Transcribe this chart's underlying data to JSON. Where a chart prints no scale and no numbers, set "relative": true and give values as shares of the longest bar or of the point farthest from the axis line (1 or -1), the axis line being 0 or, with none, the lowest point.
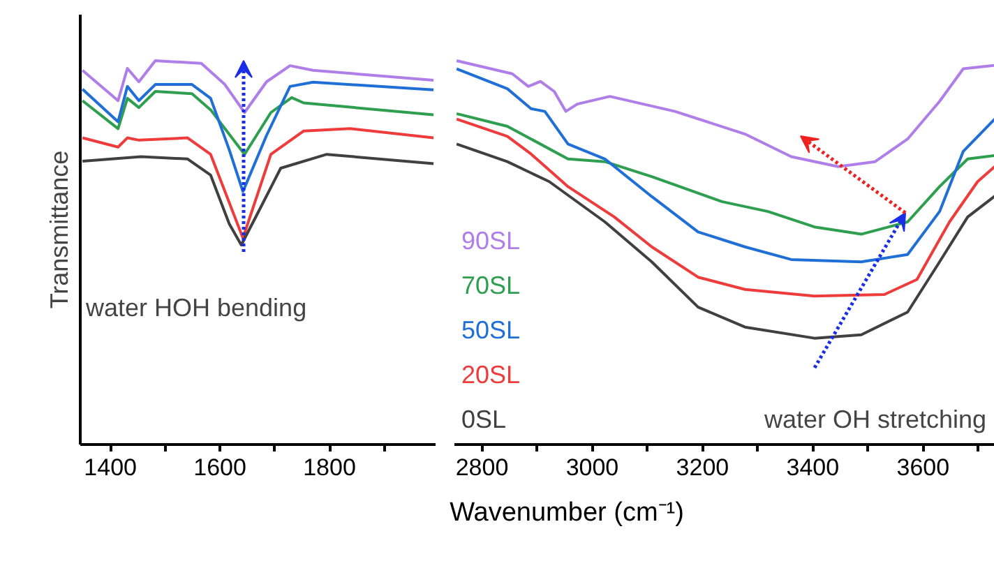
{
  "chart_data": [
    {
      "type": "line",
      "ylabel": "Transmittance",
      "relative": true,
      "xlim": [
        1345,
        1995
      ],
      "xticks": [
        1400,
        {
          "value": 1500,
          "label": null
        },
        1600,
        {
          "value": 1700,
          "label": null
        },
        1800,
        {
          "value": 1900,
          "label": null
        }
      ],
      "grid": false,
      "annotations": [
        "water HOH bending"
      ],
      "series": [
        {
          "color": "#b07ee8",
          "x": [
            1349,
            1414,
            1431,
            1452,
            1482,
            1566,
            1609,
            1645,
            1685,
            1728,
            1770,
            1990
          ],
          "values": [
            0.975,
            0.896,
            0.98,
            0.945,
            1.0,
            0.993,
            0.938,
            0.865,
            0.945,
            0.987,
            0.975,
            0.949
          ]
        },
        {
          "color": "#2e9e4f",
          "x": [
            1349,
            1414,
            1431,
            1452,
            1482,
            1549,
            1583,
            1645,
            1693,
            1731,
            1753,
            1990
          ],
          "values": [
            0.896,
            0.823,
            0.902,
            0.878,
            0.92,
            0.914,
            0.872,
            0.756,
            0.865,
            0.904,
            0.89,
            0.859
          ]
        },
        {
          "color": "#1f6fd6",
          "x": [
            1349,
            1414,
            1431,
            1452,
            1482,
            1549,
            1583,
            1617,
            1642,
            1685,
            1728,
            1770,
            1990
          ],
          "values": [
            0.926,
            0.841,
            0.933,
            0.896,
            0.938,
            0.938,
            0.902,
            0.768,
            0.659,
            0.805,
            0.933,
            0.944,
            0.924
          ]
        },
        {
          "color": "#ee3b3b",
          "x": [
            1349,
            1414,
            1431,
            1452,
            1541,
            1583,
            1642,
            1693,
            1753,
            1838,
            1990
          ],
          "values": [
            0.799,
            0.775,
            0.799,
            0.793,
            0.799,
            0.756,
            0.538,
            0.756,
            0.817,
            0.823,
            0.799
          ]
        },
        {
          "color": "#404040",
          "x": [
            1349,
            1456,
            1541,
            1583,
            1617,
            1639,
            1668,
            1711,
            1795,
            1990
          ],
          "values": [
            0.738,
            0.75,
            0.744,
            0.702,
            0.575,
            0.52,
            0.6,
            0.72,
            0.756,
            0.732
          ]
        }
      ]
    },
    {
      "type": "line",
      "xlabel": "Wavenumber (cm⁻¹)",
      "relative": true,
      "xlim": [
        2750,
        3730
      ],
      "xticks": [
        2800,
        {
          "value": 2900,
          "label": null
        },
        3000,
        {
          "value": 3100,
          "label": null
        },
        3200,
        {
          "value": 3300,
          "label": null
        },
        3400,
        {
          "value": 3500,
          "label": null
        },
        3600,
        {
          "value": 3700,
          "label": null
        }
      ],
      "grid": false,
      "annotations": [
        "water OH stretching"
      ],
      "series": [
        {
          "name": "90SL",
          "color": "#b07ee8",
          "x": [
            2754,
            2855,
            2884,
            2906,
            2931,
            2952,
            2973,
            3032,
            3150,
            3277,
            3361,
            3446,
            3513,
            3572,
            3630,
            3673,
            3730
          ],
          "values": [
            1.0,
            0.966,
            0.933,
            0.946,
            0.92,
            0.868,
            0.887,
            0.907,
            0.868,
            0.809,
            0.75,
            0.724,
            0.737,
            0.796,
            0.894,
            0.979,
            0.988
          ]
        },
        {
          "name": "70SL",
          "color": "#2e9e4f",
          "x": [
            2754,
            2846,
            2889,
            2956,
            3023,
            3108,
            3235,
            3319,
            3403,
            3488,
            3572,
            3630,
            3681,
            3730
          ],
          "values": [
            0.862,
            0.829,
            0.796,
            0.744,
            0.737,
            0.698,
            0.633,
            0.607,
            0.567,
            0.548,
            0.58,
            0.672,
            0.744,
            0.753
          ]
        },
        {
          "name": "50SL",
          "color": "#1f6fd6",
          "x": [
            2754,
            2846,
            2889,
            2914,
            2956,
            3023,
            3108,
            3192,
            3277,
            3361,
            3488,
            3572,
            3630,
            3673,
            3730
          ],
          "values": [
            0.979,
            0.927,
            0.875,
            0.868,
            0.783,
            0.744,
            0.646,
            0.554,
            0.515,
            0.482,
            0.476,
            0.495,
            0.607,
            0.764,
            0.848
          ]
        },
        {
          "name": "20SL",
          "color": "#ee3b3b",
          "x": [
            2754,
            2846,
            2889,
            2956,
            3040,
            3108,
            3192,
            3277,
            3403,
            3530,
            3589,
            3648,
            3699,
            3730
          ],
          "values": [
            0.848,
            0.803,
            0.757,
            0.672,
            0.593,
            0.515,
            0.436,
            0.404,
            0.387,
            0.391,
            0.43,
            0.58,
            0.685,
            0.724
          ]
        },
        {
          "name": "0SL",
          "color": "#404040",
          "x": [
            2754,
            2846,
            2922,
            3023,
            3108,
            3192,
            3277,
            3403,
            3488,
            3572,
            3630,
            3681,
            3730
          ],
          "values": [
            0.783,
            0.737,
            0.685,
            0.58,
            0.476,
            0.358,
            0.306,
            0.277,
            0.286,
            0.345,
            0.476,
            0.593,
            0.647
          ]
        }
      ]
    }
  ]
}
